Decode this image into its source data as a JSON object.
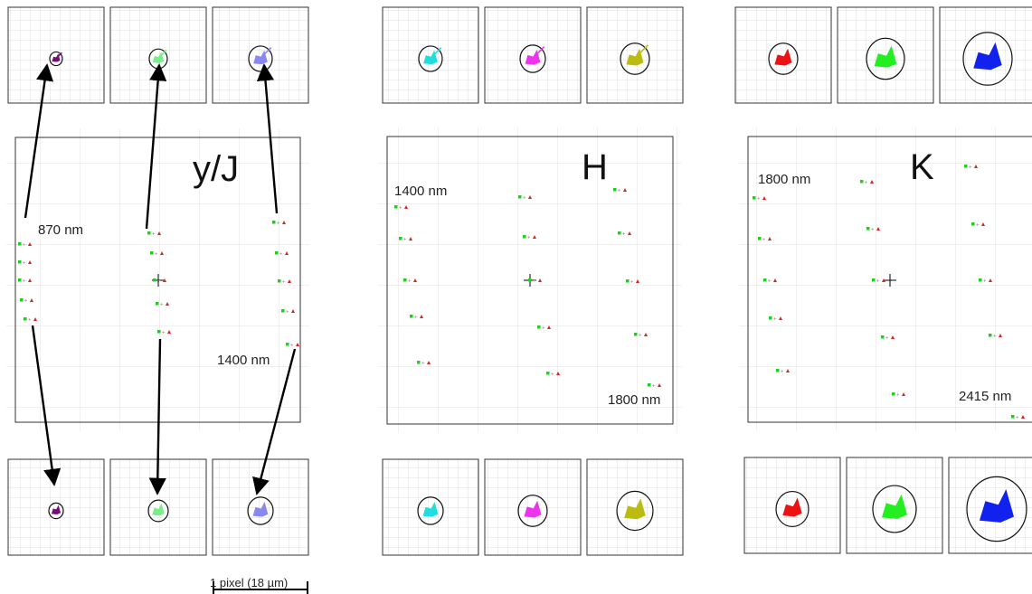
{
  "figure": {
    "scale_bar_label": "1 pixel (18 µm)"
  },
  "panels": [
    {
      "band": "y/J",
      "wavelength_start": "870 nm",
      "wavelength_end": "1400 nm",
      "top_spot_colors": [
        "#7a0a7a",
        "#77ee88",
        "#8888ee"
      ],
      "bottom_spot_colors": [
        "#7a0a7a",
        "#77ee88",
        "#8888ee"
      ],
      "columns": [
        {
          "markers": [
            [
              22,
              270
            ],
            [
              22,
              290
            ],
            [
              22,
              310
            ],
            [
              24,
              332
            ],
            [
              28,
              353
            ]
          ]
        },
        {
          "markers": [
            [
              165,
              258
            ],
            [
              168,
              280
            ],
            [
              171,
              310
            ],
            [
              174,
              336
            ],
            [
              176,
              367
            ]
          ]
        },
        {
          "markers": [
            [
              303,
              246
            ],
            [
              306,
              280
            ],
            [
              309,
              311
            ],
            [
              313,
              344
            ],
            [
              318,
              381
            ]
          ]
        }
      ]
    },
    {
      "band": "H",
      "wavelength_start": "1400 nm",
      "wavelength_end": "1800 nm",
      "top_spot_colors": [
        "#22dddd",
        "#ee33ee",
        "#bbbb11"
      ],
      "bottom_spot_colors": [
        "#22dddd",
        "#ee33ee",
        "#bbbb11"
      ],
      "columns": [
        {
          "markers": [
            [
              438,
              229
            ],
            [
              443,
              264
            ],
            [
              448,
              310
            ],
            [
              455,
              350
            ],
            [
              463,
              401
            ]
          ]
        },
        {
          "markers": [
            [
              575,
              218
            ],
            [
              580,
              262
            ],
            [
              586,
              310
            ],
            [
              596,
              362
            ],
            [
              606,
              413
            ]
          ]
        },
        {
          "markers": [
            [
              680,
              210
            ],
            [
              685,
              258
            ],
            [
              694,
              311
            ],
            [
              703,
              370
            ],
            [
              718,
              426
            ]
          ]
        }
      ]
    },
    {
      "band": "K",
      "wavelength_start": "1800 nm",
      "wavelength_end": "2415 nm",
      "top_spot_colors": [
        "#ee1111",
        "#22ee22",
        "#1122ee"
      ],
      "bottom_spot_colors": [
        "#ee1111",
        "#22ee22",
        "#1122ee"
      ],
      "columns": [
        {
          "markers": [
            [
              834,
              219
            ],
            [
              840,
              264
            ],
            [
              846,
              310
            ],
            [
              852,
              352
            ],
            [
              860,
              410
            ]
          ]
        },
        {
          "markers": [
            [
              953,
              201
            ],
            [
              960,
              253
            ],
            [
              966,
              310
            ],
            [
              976,
              373
            ],
            [
              988,
              436
            ]
          ]
        },
        {
          "markers": [
            [
              1068,
              184
            ],
            [
              1076,
              248
            ],
            [
              1084,
              310
            ],
            [
              1095,
              371
            ],
            [
              1120,
              461
            ]
          ]
        }
      ]
    }
  ]
}
